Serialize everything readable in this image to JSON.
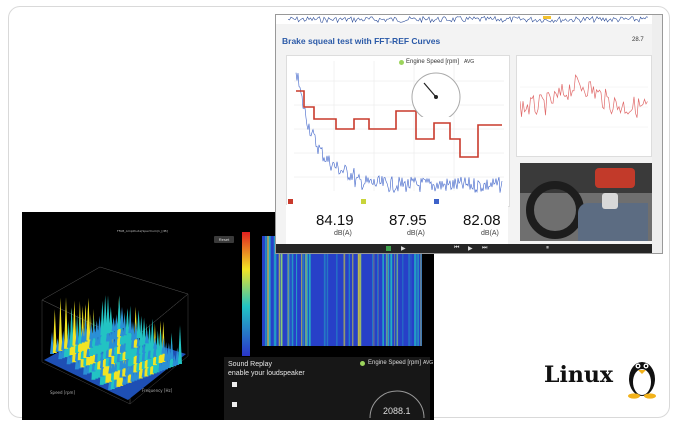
{
  "brand": {
    "os_label": "Linux"
  },
  "dark_screen": {
    "plot_title": "FFAB_Amplitude(Spectrum)1_[dB]",
    "reset_button": "Reset",
    "axis_speed": "Speed [rpm]",
    "axis_frequency": "Frequency [Hz]",
    "sound_replay_title": "Sound Replay",
    "sound_replay_sub": "enable your loudspeaker",
    "gauge_label": "Engine Speed [rpm]",
    "gauge_avg": "AVG",
    "gauge_value": "2088.1",
    "colors": {
      "low": "#2a35c9",
      "mid": "#22c3c3",
      "high": "#f2e424",
      "peak": "#e02020"
    }
  },
  "light_screen": {
    "title": "Brake squeal test with FFT-REF Curves",
    "page_number": "28.7",
    "gauge_label": "Engine Speed [rpm]",
    "gauge_avg": "AVG",
    "metrics": [
      {
        "value": "84.19",
        "unit": "dB(A)"
      },
      {
        "value": "87.95",
        "unit": "dB(A)"
      },
      {
        "value": "82.08",
        "unit": "dB(A)"
      }
    ],
    "colors": {
      "spectrum": "#3d62c9",
      "ref_curve": "#c93a2c",
      "accent": "#2b5aa8",
      "trend": "#e06a6a"
    }
  }
}
